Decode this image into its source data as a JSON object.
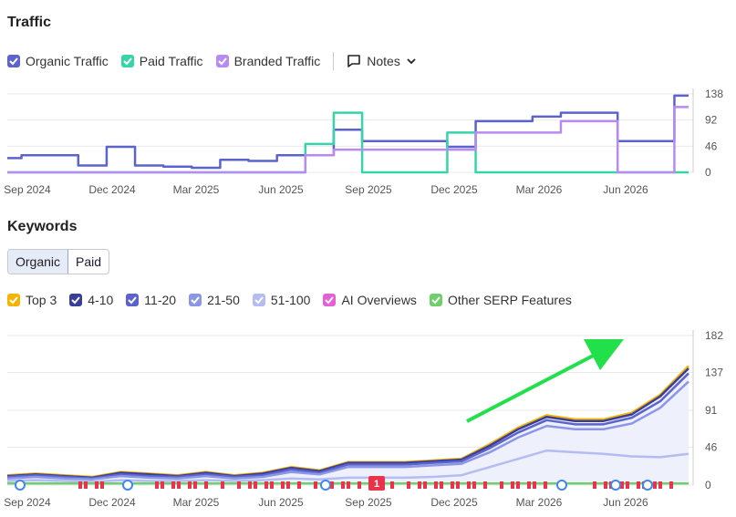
{
  "traffic": {
    "title": "Traffic",
    "legend": [
      {
        "label": "Organic Traffic",
        "color": "#5c63cc"
      },
      {
        "label": "Paid Traffic",
        "color": "#36d4a8"
      },
      {
        "label": "Branded Traffic",
        "color": "#b98af0"
      }
    ],
    "notes_label": "Notes"
  },
  "keywords": {
    "title": "Keywords",
    "tabs": [
      "Organic",
      "Paid"
    ],
    "legend": [
      {
        "label": "Top 3",
        "color": "#f5b400"
      },
      {
        "label": "4-10",
        "color": "#383e9a"
      },
      {
        "label": "11-20",
        "color": "#5c63cc"
      },
      {
        "label": "21-50",
        "color": "#8c96e6"
      },
      {
        "label": "51-100",
        "color": "#b4bcf2"
      },
      {
        "label": "AI Overviews",
        "color": "#e55fd6"
      },
      {
        "label": "Other SERP Features",
        "color": "#6fcf6a"
      }
    ],
    "serp_badge": "1"
  },
  "x_ticks": [
    "Sep 2024",
    "Dec 2024",
    "Mar 2025",
    "Jun 2025",
    "Sep 2025",
    "Dec 2025",
    "Mar 2026",
    "Jun 2026"
  ],
  "chart_data": [
    {
      "type": "line",
      "name_hint": "traffic",
      "yticks": [
        0,
        46,
        92,
        138
      ],
      "ylim": [
        0,
        138
      ],
      "x": [
        "Aug 2024",
        "Sep 2024",
        "Oct 2024",
        "Nov 2024",
        "Dec 2024",
        "Jan 2025",
        "Feb 2025",
        "Mar 2025",
        "Apr 2025",
        "May 2025",
        "Jun 2025",
        "Jul 2025",
        "Aug 2025",
        "Sep 2025",
        "Oct 2025",
        "Nov 2025",
        "Dec 2025",
        "Jan 2026",
        "Feb 2026",
        "Mar 2026",
        "Apr 2026",
        "May 2026",
        "Jun 2026",
        "Jul 2026",
        "Aug 2026"
      ],
      "series": [
        {
          "name": "Organic Traffic",
          "values": [
            25,
            30,
            30,
            12,
            45,
            12,
            10,
            8,
            22,
            20,
            30,
            30,
            75,
            55,
            55,
            55,
            45,
            90,
            90,
            98,
            105,
            105,
            55,
            55,
            135
          ]
        },
        {
          "name": "Paid Traffic",
          "values": [
            0,
            0,
            0,
            0,
            0,
            0,
            0,
            0,
            0,
            0,
            0,
            50,
            105,
            0,
            0,
            0,
            70,
            0,
            0,
            0,
            0,
            0,
            0,
            0,
            0
          ]
        },
        {
          "name": "Branded Traffic",
          "values": [
            0,
            0,
            0,
            0,
            0,
            0,
            0,
            0,
            0,
            0,
            0,
            30,
            40,
            40,
            40,
            40,
            40,
            70,
            70,
            70,
            90,
            90,
            0,
            0,
            115
          ]
        }
      ]
    },
    {
      "type": "area",
      "name_hint": "keywords",
      "yticks": [
        0,
        46,
        91,
        137,
        182
      ],
      "ylim": [
        0,
        182
      ],
      "x": [
        "Aug 2024",
        "Sep 2024",
        "Oct 2024",
        "Nov 2024",
        "Dec 2024",
        "Jan 2025",
        "Feb 2025",
        "Mar 2025",
        "Apr 2025",
        "May 2025",
        "Jun 2025",
        "Jul 2025",
        "Aug 2025",
        "Sep 2025",
        "Oct 2025",
        "Nov 2025",
        "Dec 2025",
        "Jan 2026",
        "Feb 2026",
        "Mar 2026",
        "Apr 2026",
        "May 2026",
        "Jun 2026",
        "Jul 2026",
        "Aug 2026"
      ],
      "series": [
        {
          "name": "Top 3",
          "values": [
            12,
            14,
            12,
            10,
            16,
            14,
            12,
            16,
            12,
            15,
            22,
            18,
            28,
            28,
            28,
            30,
            32,
            50,
            70,
            85,
            80,
            80,
            88,
            110,
            145
          ]
        },
        {
          "name": "4-10",
          "values": [
            11,
            13,
            11,
            9,
            15,
            13,
            11,
            15,
            11,
            14,
            21,
            17,
            27,
            27,
            27,
            29,
            31,
            48,
            68,
            83,
            78,
            78,
            86,
            108,
            142
          ]
        },
        {
          "name": "11-20",
          "values": [
            10,
            12,
            10,
            8,
            13,
            11,
            10,
            13,
            10,
            12,
            19,
            15,
            25,
            25,
            25,
            27,
            29,
            45,
            64,
            79,
            74,
            74,
            82,
            102,
            136
          ]
        },
        {
          "name": "21-50",
          "values": [
            8,
            10,
            8,
            7,
            11,
            9,
            8,
            11,
            8,
            10,
            16,
            13,
            22,
            22,
            22,
            24,
            26,
            40,
            58,
            72,
            68,
            68,
            75,
            94,
            126
          ]
        },
        {
          "name": "51-100",
          "values": [
            5,
            6,
            5,
            4,
            6,
            5,
            5,
            6,
            5,
            6,
            8,
            7,
            9,
            9,
            9,
            10,
            12,
            22,
            32,
            42,
            40,
            38,
            35,
            34,
            38
          ]
        },
        {
          "name": "Other SERP Features",
          "values": [
            2,
            2,
            2,
            2,
            2,
            2,
            2,
            2,
            2,
            2,
            2,
            2,
            2,
            2,
            2,
            2,
            2,
            2,
            2,
            2,
            2,
            2,
            2,
            2,
            2
          ]
        }
      ]
    }
  ]
}
